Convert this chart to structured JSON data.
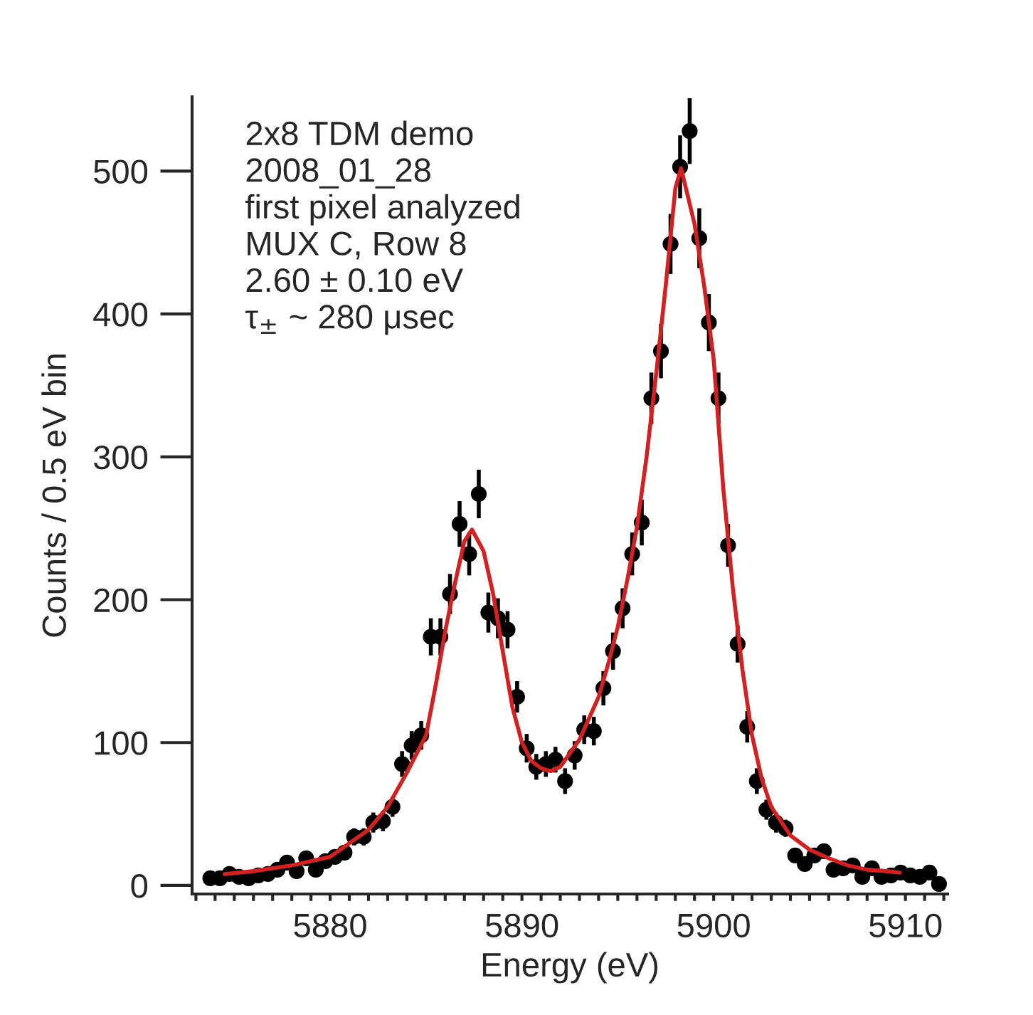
{
  "chart_data": {
    "type": "scatter",
    "xlabel": "Energy (eV)",
    "ylabel": "Counts / 0.5 eV bin",
    "annotations": [
      "2x8 TDM demo",
      "2008_01_28",
      "first pixel analyzed",
      "MUX C, Row 8",
      "2.60 ± 0.10 eV",
      "τ$_{±}$ ~ 280 μsec"
    ],
    "xlim": [
      5872.8,
      5912.2
    ],
    "ylim": [
      -6,
      552
    ],
    "xticks": [
      {
        "value": 5873,
        "label": null
      },
      {
        "value": 5874,
        "label": null
      },
      {
        "value": 5875,
        "label": null
      },
      {
        "value": 5876,
        "label": null
      },
      {
        "value": 5877,
        "label": null
      },
      {
        "value": 5878,
        "label": null
      },
      {
        "value": 5879,
        "label": null
      },
      5880,
      {
        "value": 5881,
        "label": null
      },
      {
        "value": 5882,
        "label": null
      },
      {
        "value": 5883,
        "label": null
      },
      {
        "value": 5884,
        "label": null
      },
      {
        "value": 5885,
        "label": null
      },
      {
        "value": 5886,
        "label": null
      },
      {
        "value": 5887,
        "label": null
      },
      {
        "value": 5888,
        "label": null
      },
      {
        "value": 5889,
        "label": null
      },
      5890,
      {
        "value": 5891,
        "label": null
      },
      {
        "value": 5892,
        "label": null
      },
      {
        "value": 5893,
        "label": null
      },
      {
        "value": 5894,
        "label": null
      },
      {
        "value": 5895,
        "label": null
      },
      {
        "value": 5896,
        "label": null
      },
      {
        "value": 5897,
        "label": null
      },
      {
        "value": 5898,
        "label": null
      },
      {
        "value": 5899,
        "label": null
      },
      5900,
      {
        "value": 5901,
        "label": null
      },
      {
        "value": 5902,
        "label": null
      },
      {
        "value": 5903,
        "label": null
      },
      {
        "value": 5904,
        "label": null
      },
      {
        "value": 5905,
        "label": null
      },
      {
        "value": 5906,
        "label": null
      },
      {
        "value": 5907,
        "label": null
      },
      {
        "value": 5908,
        "label": null
      },
      {
        "value": 5909,
        "label": null
      },
      5910,
      {
        "value": 5911,
        "label": null
      },
      {
        "value": 5912,
        "label": null
      }
    ],
    "yticks": [
      0,
      100,
      200,
      300,
      400,
      500
    ],
    "grid": false,
    "legend": false,
    "series": [
      {
        "color": "#000000",
        "marker": "circle",
        "x": [
          5873.75,
          5874.25,
          5874.75,
          5875.25,
          5875.75,
          5876.25,
          5876.75,
          5877.25,
          5877.75,
          5878.25,
          5878.75,
          5879.25,
          5879.75,
          5880.25,
          5880.75,
          5881.25,
          5881.75,
          5882.25,
          5882.75,
          5883.25,
          5883.75,
          5884.25,
          5884.75,
          5885.25,
          5885.75,
          5886.25,
          5886.75,
          5887.25,
          5887.75,
          5888.25,
          5888.75,
          5889.25,
          5889.75,
          5890.25,
          5890.75,
          5891.25,
          5891.75,
          5892.25,
          5892.75,
          5893.25,
          5893.75,
          5894.25,
          5894.75,
          5895.25,
          5895.75,
          5896.25,
          5896.75,
          5897.25,
          5897.75,
          5898.25,
          5898.75,
          5899.25,
          5899.75,
          5900.25,
          5900.75,
          5901.25,
          5901.75,
          5902.25,
          5902.75,
          5903.25,
          5903.75,
          5904.25,
          5904.75,
          5905.25,
          5905.75,
          5906.25,
          5906.75,
          5907.25,
          5907.75,
          5908.25,
          5908.75,
          5909.25,
          5909.75,
          5910.25,
          5910.75,
          5911.25,
          5911.75
        ],
        "values": [
          5,
          5,
          8,
          6,
          5,
          7,
          8,
          11,
          16,
          10,
          19,
          11,
          17,
          20,
          23,
          34,
          34,
          44,
          45,
          55,
          85,
          98,
          105,
          174,
          174,
          204,
          253,
          232,
          274,
          191,
          187,
          179,
          132,
          96,
          83,
          85,
          88,
          73,
          91,
          109,
          108,
          138,
          164,
          194,
          232,
          254,
          341,
          374,
          449,
          503,
          528,
          453,
          394,
          341,
          238,
          169,
          111,
          73,
          53,
          44,
          40,
          21,
          15,
          21,
          24,
          11,
          12,
          14,
          6,
          12,
          6,
          7,
          9,
          7,
          6,
          9,
          1
        ],
        "errors": [
          2,
          2,
          3,
          2,
          2,
          3,
          3,
          3,
          4,
          3,
          4,
          3,
          4,
          4,
          5,
          6,
          6,
          7,
          7,
          7,
          9,
          10,
          10,
          13,
          13,
          14,
          16,
          15,
          17,
          14,
          14,
          13,
          11,
          10,
          9,
          9,
          9,
          9,
          10,
          10,
          10,
          12,
          13,
          14,
          15,
          16,
          18,
          19,
          21,
          22,
          23,
          21,
          20,
          18,
          15,
          13,
          11,
          9,
          7,
          7,
          6,
          5,
          4,
          5,
          5,
          3,
          3,
          4,
          2,
          3,
          2,
          3,
          3,
          3,
          2,
          3,
          1
        ]
      },
      {
        "type": "line",
        "color": "#d42020",
        "line_style": "solid",
        "x": [
          5874.5,
          5876,
          5878,
          5880,
          5882,
          5883,
          5884,
          5885,
          5885.5,
          5886,
          5886.5,
          5887,
          5887.4,
          5888,
          5888.5,
          5889,
          5889.5,
          5890,
          5890.5,
          5891,
          5891.5,
          5892,
          5893,
          5894,
          5894.5,
          5895,
          5895.5,
          5896,
          5896.5,
          5897,
          5897.5,
          5898,
          5898.3,
          5899,
          5899.5,
          5900,
          5900.5,
          5901,
          5901.5,
          5902,
          5902.5,
          5903,
          5904,
          5905,
          5906,
          5907,
          5908,
          5909,
          5909.7
        ],
        "values": [
          8,
          10,
          14,
          20,
          39,
          55,
          79,
          105,
          140,
          178,
          211,
          241,
          249,
          234,
          204,
          164,
          125,
          100,
          87,
          82,
          80,
          83,
          102,
          132,
          155,
          181,
          214,
          251,
          300,
          358,
          420,
          488,
          502,
          463,
          420,
          368,
          278,
          208,
          151,
          105,
          75,
          55,
          35,
          25,
          19,
          14,
          11,
          10,
          9
        ]
      }
    ]
  }
}
